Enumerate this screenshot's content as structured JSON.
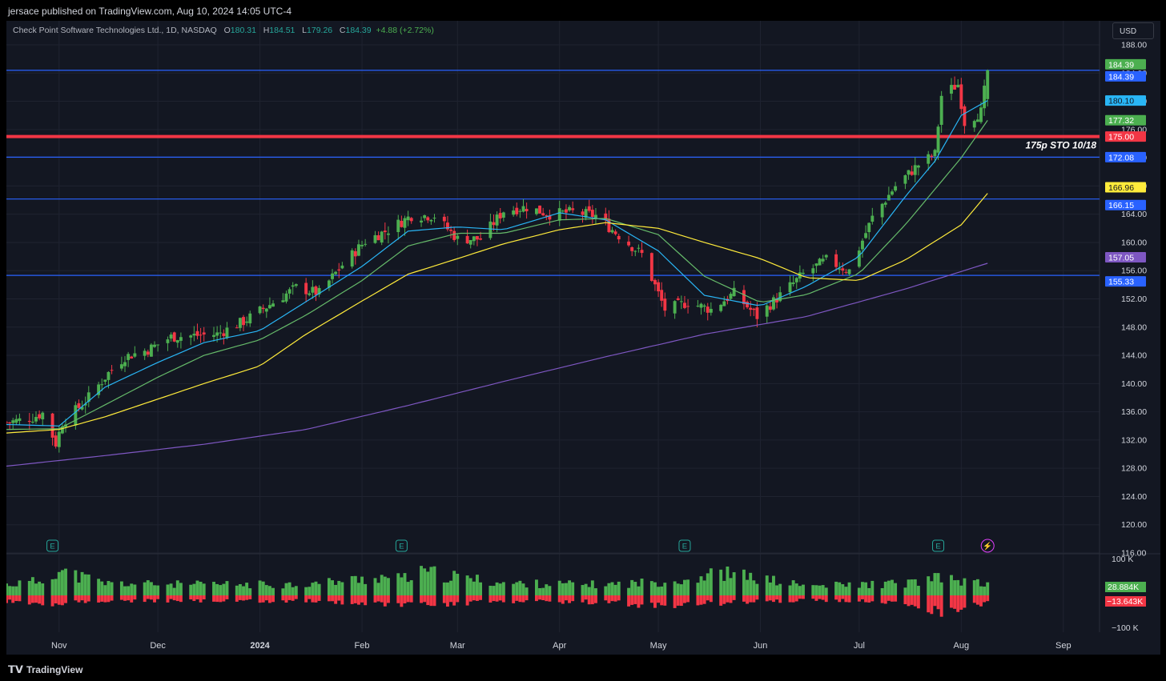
{
  "header": {
    "publisher_line": "jersace published on TradingView.com, Aug 10, 2024 14:05 UTC-4"
  },
  "legend": {
    "symbol": "Check Point Software Technologies Ltd., 1D, NASDAQ",
    "o_label": "O",
    "o": "180.31",
    "h_label": "H",
    "h": "184.51",
    "l_label": "L",
    "l": "179.26",
    "c_label": "C",
    "c": "184.39",
    "change": "+4.88 (+2.72%)"
  },
  "currency_button": "USD",
  "footer": {
    "brand": "TradingView"
  },
  "colors": {
    "background": "#131722",
    "grid": "#1f2330",
    "up": "#4caf50",
    "down": "#f23645",
    "ema_fast": "#29b6f6",
    "ema_mid": "#66bb6a",
    "sma_50": "#ffeb3b",
    "sma_200": "#7e57c2",
    "hline": "#2962ff",
    "strike": "#f23645"
  },
  "chart_data": {
    "type": "candlestick",
    "title": "Check Point Software Technologies Ltd., 1D, NASDAQ",
    "y_ticks": [
      "188.00",
      "184.00",
      "180.00",
      "176.00",
      "172.00",
      "168.00",
      "164.00",
      "160.00",
      "156.00",
      "152.00",
      "148.00",
      "144.00",
      "140.00",
      "136.00",
      "132.00",
      "128.00",
      "124.00",
      "120.00",
      "116.00"
    ],
    "y_range": [
      116,
      188
    ],
    "x_labels": [
      "Nov",
      "Dec",
      "2024",
      "Feb",
      "Mar",
      "Apr",
      "May",
      "Jun",
      "Jul",
      "Aug",
      "Sep"
    ],
    "x_range": [
      "2023-10-16",
      "2024-09-12"
    ],
    "x_label_dates": [
      "2023-11-01",
      "2023-12-01",
      "2024-01-01",
      "2024-02-01",
      "2024-03-01",
      "2024-04-01",
      "2024-05-01",
      "2024-06-01",
      "2024-07-01",
      "2024-08-01",
      "2024-09-01"
    ],
    "price_path": [
      [
        "2023-10-16",
        134.5
      ],
      [
        "2023-10-20",
        134.8
      ],
      [
        "2023-10-24",
        135.2
      ],
      [
        "2023-10-27",
        135.8
      ],
      [
        "2023-10-31",
        131.5
      ],
      [
        "2023-11-02",
        134.5
      ],
      [
        "2023-11-09",
        137.5
      ],
      [
        "2023-11-16",
        141.5
      ],
      [
        "2023-11-21",
        143.8
      ],
      [
        "2023-11-28",
        144.8
      ],
      [
        "2023-12-05",
        146.6
      ],
      [
        "2023-12-12",
        146.8
      ],
      [
        "2023-12-19",
        147.0
      ],
      [
        "2023-12-27",
        148.8
      ],
      [
        "2024-01-05",
        151.5
      ],
      [
        "2024-01-12",
        153.6
      ],
      [
        "2024-01-19",
        152.8
      ],
      [
        "2024-01-26",
        156.8
      ],
      [
        "2024-02-02",
        160.2
      ],
      [
        "2024-02-09",
        161.8
      ],
      [
        "2024-02-16",
        163.8
      ],
      [
        "2024-02-23",
        163.8
      ],
      [
        "2024-03-01",
        160.5
      ],
      [
        "2024-03-08",
        160.5
      ],
      [
        "2024-03-15",
        164.5
      ],
      [
        "2024-03-22",
        165.0
      ],
      [
        "2024-03-29",
        164.0
      ],
      [
        "2024-04-05",
        164.3
      ],
      [
        "2024-04-12",
        163.8
      ],
      [
        "2024-04-19",
        161.0
      ],
      [
        "2024-04-26",
        158.3
      ],
      [
        "2024-05-03",
        150.5
      ],
      [
        "2024-05-10",
        151.5
      ],
      [
        "2024-05-17",
        150.5
      ],
      [
        "2024-05-24",
        152.8
      ],
      [
        "2024-05-31",
        149.5
      ],
      [
        "2024-06-07",
        152.5
      ],
      [
        "2024-06-14",
        155.5
      ],
      [
        "2024-06-21",
        157.5
      ],
      [
        "2024-06-28",
        156.0
      ],
      [
        "2024-07-05",
        163.5
      ],
      [
        "2024-07-12",
        168.0
      ],
      [
        "2024-07-19",
        171.0
      ],
      [
        "2024-07-24",
        172.5
      ],
      [
        "2024-07-26",
        180.8
      ],
      [
        "2024-07-31",
        182.4
      ],
      [
        "2024-08-02",
        177.0
      ],
      [
        "2024-08-07",
        178.5
      ],
      [
        "2024-08-09",
        184.39
      ]
    ],
    "last_bar": {
      "date": "2024-08-09",
      "open": 180.31,
      "high": 184.51,
      "low": 179.26,
      "close": 184.39,
      "change": 4.88,
      "change_pct": 2.72
    },
    "series": [
      {
        "id": "ema_fast",
        "color": "#29b6f6",
        "last_value": 180.1,
        "points": [
          [
            "2023-10-16",
            134.2
          ],
          [
            "2023-11-01",
            134.0
          ],
          [
            "2023-11-15",
            139.5
          ],
          [
            "2023-12-01",
            143.0
          ],
          [
            "2023-12-15",
            145.8
          ],
          [
            "2024-01-01",
            147.5
          ],
          [
            "2024-01-15",
            151.6
          ],
          [
            "2024-02-01",
            156.6
          ],
          [
            "2024-02-15",
            161.6
          ],
          [
            "2024-03-01",
            162.2
          ],
          [
            "2024-03-15",
            161.8
          ],
          [
            "2024-04-01",
            164.2
          ],
          [
            "2024-04-15",
            163.2
          ],
          [
            "2024-05-01",
            158.8
          ],
          [
            "2024-05-15",
            152.5
          ],
          [
            "2024-06-01",
            151.0
          ],
          [
            "2024-06-15",
            153.8
          ],
          [
            "2024-07-01",
            158.0
          ],
          [
            "2024-07-15",
            166.5
          ],
          [
            "2024-07-24",
            171.5
          ],
          [
            "2024-08-01",
            178.0
          ],
          [
            "2024-08-09",
            180.1
          ]
        ]
      },
      {
        "id": "ema_mid",
        "color": "#66bb6a",
        "last_value": 177.32,
        "points": [
          [
            "2023-10-16",
            133.5
          ],
          [
            "2023-11-01",
            133.6
          ],
          [
            "2023-11-15",
            137.0
          ],
          [
            "2023-12-01",
            140.9
          ],
          [
            "2023-12-15",
            144.0
          ],
          [
            "2024-01-01",
            146.2
          ],
          [
            "2024-01-15",
            149.7
          ],
          [
            "2024-02-01",
            154.6
          ],
          [
            "2024-02-15",
            159.5
          ],
          [
            "2024-03-01",
            161.3
          ],
          [
            "2024-03-15",
            161.3
          ],
          [
            "2024-04-01",
            163.2
          ],
          [
            "2024-04-15",
            163.4
          ],
          [
            "2024-05-01",
            161.1
          ],
          [
            "2024-05-15",
            155.2
          ],
          [
            "2024-06-01",
            151.5
          ],
          [
            "2024-06-15",
            152.6
          ],
          [
            "2024-07-01",
            155.6
          ],
          [
            "2024-07-15",
            162.5
          ],
          [
            "2024-08-01",
            172.0
          ],
          [
            "2024-08-09",
            177.3
          ]
        ]
      },
      {
        "id": "sma_50",
        "color": "#ffeb3b",
        "last_value": 166.96,
        "points": [
          [
            "2023-10-16",
            133.0
          ],
          [
            "2023-11-01",
            133.5
          ],
          [
            "2023-11-15",
            135.3
          ],
          [
            "2023-12-01",
            137.8
          ],
          [
            "2023-12-15",
            140.0
          ],
          [
            "2024-01-01",
            142.5
          ],
          [
            "2024-01-15",
            147.0
          ],
          [
            "2024-02-01",
            151.7
          ],
          [
            "2024-02-15",
            155.5
          ],
          [
            "2024-03-01",
            157.7
          ],
          [
            "2024-03-15",
            159.8
          ],
          [
            "2024-04-01",
            161.8
          ],
          [
            "2024-04-15",
            162.8
          ],
          [
            "2024-05-01",
            162.0
          ],
          [
            "2024-05-15",
            160.0
          ],
          [
            "2024-06-01",
            157.7
          ],
          [
            "2024-06-15",
            155.0
          ],
          [
            "2024-07-01",
            154.6
          ],
          [
            "2024-07-15",
            157.5
          ],
          [
            "2024-08-01",
            162.5
          ],
          [
            "2024-08-09",
            166.96
          ]
        ]
      },
      {
        "id": "sma_200",
        "color": "#7e57c2",
        "last_value": 157.05,
        "points": [
          [
            "2023-10-16",
            128.3
          ],
          [
            "2023-11-15",
            129.8
          ],
          [
            "2023-12-15",
            131.4
          ],
          [
            "2024-01-15",
            133.5
          ],
          [
            "2024-02-15",
            136.9
          ],
          [
            "2024-03-15",
            140.3
          ],
          [
            "2024-04-15",
            143.8
          ],
          [
            "2024-05-15",
            147.0
          ],
          [
            "2024-06-15",
            149.5
          ],
          [
            "2024-07-15",
            153.4
          ],
          [
            "2024-08-09",
            157.05
          ]
        ]
      }
    ],
    "hlines": [
      {
        "value": 184.39,
        "color": "#2962ff"
      },
      {
        "value": 175.0,
        "color": "#f23645",
        "annotation": "175p STO 10/18"
      },
      {
        "value": 172.08,
        "color": "#2962ff"
      },
      {
        "value": 166.15,
        "color": "#2962ff"
      },
      {
        "value": 155.33,
        "color": "#2962ff"
      }
    ],
    "price_labels": [
      {
        "value": 184.39,
        "text": "184.39",
        "bg": "#4caf50",
        "fg": "#ffffff",
        "offset": -1
      },
      {
        "value": 184.39,
        "text": "184.39",
        "bg": "#2962ff",
        "fg": "#ffffff",
        "offset": 1
      },
      {
        "value": 180.1,
        "text": "180.10",
        "bg": "#29b6f6",
        "fg": "#131722",
        "offset": 0
      },
      {
        "value": 177.32,
        "text": "177.32",
        "bg": "#4caf50",
        "fg": "#ffffff",
        "offset": 0
      },
      {
        "value": 175.0,
        "text": "175.00",
        "bg": "#f23645",
        "fg": "#ffffff",
        "offset": 0
      },
      {
        "value": 172.08,
        "text": "172.08",
        "bg": "#2962ff",
        "fg": "#ffffff",
        "offset": 0
      },
      {
        "value": 166.96,
        "text": "166.96",
        "bg": "#ffeb3b",
        "fg": "#131722",
        "offset": -1
      },
      {
        "value": 166.15,
        "text": "166.15",
        "bg": "#2962ff",
        "fg": "#ffffff",
        "offset": 1
      },
      {
        "value": 157.05,
        "text": "157.05",
        "bg": "#7e57c2",
        "fg": "#ffffff",
        "offset": -1
      },
      {
        "value": 155.33,
        "text": "155.33",
        "bg": "#2962ff",
        "fg": "#ffffff",
        "offset": 1
      }
    ],
    "event_markers": [
      {
        "date": "2023-10-30",
        "glyph": "E",
        "kind": "earnings"
      },
      {
        "date": "2024-02-13",
        "glyph": "E",
        "kind": "earnings"
      },
      {
        "date": "2024-05-09",
        "glyph": "E",
        "kind": "earnings"
      },
      {
        "date": "2024-07-25",
        "glyph": "E",
        "kind": "earnings"
      },
      {
        "date": "2024-08-09",
        "glyph": "⚡",
        "kind": "news"
      }
    ],
    "volume": {
      "y_ticks": [
        "100 K",
        "−100 K"
      ],
      "y_range": [
        -100,
        100
      ],
      "unit": "K",
      "last_up": "28.884K",
      "last_down": "−13.643K",
      "profile": [
        [
          "2023-10-16",
          40,
          22
        ],
        [
          "2023-10-27",
          55,
          30
        ],
        [
          "2023-10-31",
          95,
          35
        ],
        [
          "2023-11-15",
          45,
          20
        ],
        [
          "2023-12-15",
          40,
          22
        ],
        [
          "2024-01-15",
          42,
          20
        ],
        [
          "2024-02-09",
          70,
          35
        ],
        [
          "2024-02-13",
          60,
          40
        ],
        [
          "2024-02-20",
          85,
          35
        ],
        [
          "2024-03-15",
          45,
          22
        ],
        [
          "2024-04-15",
          40,
          25
        ],
        [
          "2024-04-30",
          50,
          45
        ],
        [
          "2024-05-10",
          60,
          30
        ],
        [
          "2024-05-20",
          85,
          30
        ],
        [
          "2024-06-15",
          35,
          18
        ],
        [
          "2024-07-15",
          45,
          25
        ],
        [
          "2024-07-26",
          65,
          70
        ],
        [
          "2024-08-09",
          40,
          25
        ]
      ]
    }
  }
}
